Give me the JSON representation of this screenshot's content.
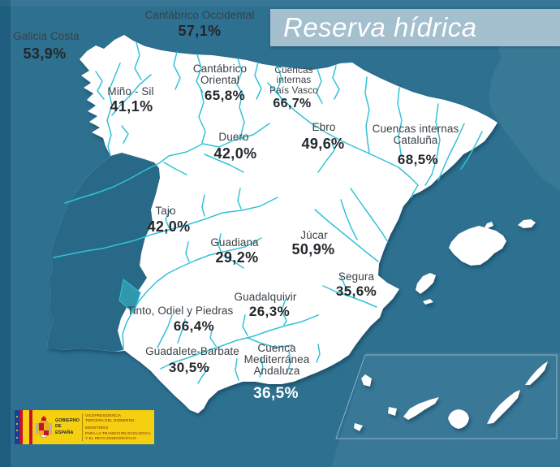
{
  "title": {
    "text": "Reserva hídrica"
  },
  "map": {
    "basins": [
      {
        "id": "galicia-costa",
        "name_lines": [
          "Galicia Costa"
        ],
        "value": "53,9%"
      },
      {
        "id": "cantabrico-occidental",
        "name_lines": [
          "Cantábrico Occidental"
        ],
        "value": "57,1%"
      },
      {
        "id": "mino-sil",
        "name_lines": [
          "Miño - Sil"
        ],
        "value": "41,1%"
      },
      {
        "id": "cantabrico-oriental",
        "name_lines": [
          "Cantábrico",
          "Oriental"
        ],
        "value": "65,8%"
      },
      {
        "id": "cuencas-internas-pais-vasco",
        "name_lines": [
          "Cuencas",
          "internas",
          "País Vasco"
        ],
        "value": "66,7%"
      },
      {
        "id": "ebro",
        "name_lines": [
          "Ebro"
        ],
        "value": "49,6%"
      },
      {
        "id": "cuencas-internas-cataluna",
        "name_lines": [
          "Cuencas internas",
          "Cataluña"
        ],
        "value": "68,5%"
      },
      {
        "id": "duero",
        "name_lines": [
          "Duero"
        ],
        "value": "42,0%"
      },
      {
        "id": "tajo",
        "name_lines": [
          "Tajo"
        ],
        "value": "42,0%"
      },
      {
        "id": "guadiana",
        "name_lines": [
          "Guadiana"
        ],
        "value": "29,2%"
      },
      {
        "id": "jucar",
        "name_lines": [
          "Júcar"
        ],
        "value": "50,9%"
      },
      {
        "id": "segura",
        "name_lines": [
          "Segura"
        ],
        "value": "35,6%"
      },
      {
        "id": "guadalquivir",
        "name_lines": [
          "Guadalquivir"
        ],
        "value": "26,3%"
      },
      {
        "id": "tinto-odiel-piedras",
        "name_lines": [
          "Tinto, Odiel y Piedras"
        ],
        "value": "66,4%"
      },
      {
        "id": "guadalete-barbate",
        "name_lines": [
          "Guadalete-Barbate"
        ],
        "value": "30,5%"
      },
      {
        "id": "cuenca-mediterranea-andaluza",
        "name_lines": [
          "Cuenca",
          "Mediterránea",
          "Andaluza"
        ],
        "value": "36,5%",
        "value_style": "light"
      }
    ]
  },
  "logo": {
    "gob1": "GOBIERNO",
    "gob2": "DE ESPAÑA",
    "vp1": "VICEPRESIDENCIA",
    "vp2": "TERCERA DEL GOBIERNO",
    "min1": "MINISTERIO",
    "min2": "PARA LA TRANSICIÓN ECOLÓGICA",
    "min3": "Y EL RETO DEMOGRÁFICO"
  },
  "colors": {
    "sea": "#2d7090",
    "sea_dark_edge": "#1e5d7d",
    "background_highlight": "#3b7b97",
    "land": "#ffffff",
    "portugal": "#296988",
    "river": "#33c2d8",
    "title_banner": "#a4bfce",
    "basin_label": "#3a4046",
    "basin_value": "#23272b",
    "basin_value_light": "#ffffff",
    "logo_yellow": "#f5d010",
    "flag_red": "#c8102e",
    "eu_blue": "#1c3f94"
  }
}
